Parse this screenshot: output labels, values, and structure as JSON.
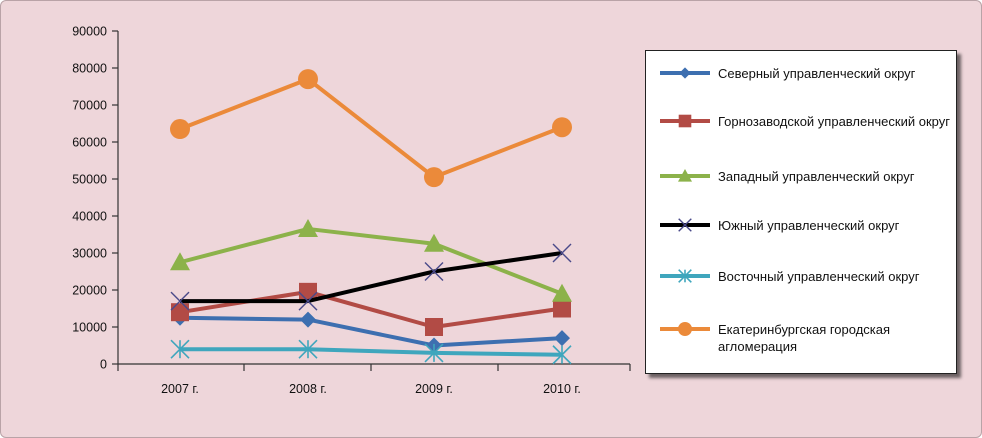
{
  "colors": {
    "background": "#eed6da",
    "severny": "#3d6fb0",
    "gornozavodskoy": "#b24b45",
    "zapadny": "#8cb24a",
    "yuzhny": "#000000",
    "vostochny": "#3fa6bd",
    "ekb": "#eb8a3a"
  },
  "chart_data": {
    "type": "line",
    "categories": [
      "2007 г.",
      "2008 г.",
      "2009 г.",
      "2010 г."
    ],
    "ylim": [
      0,
      90000
    ],
    "y_ticks": [
      0,
      10000,
      20000,
      30000,
      40000,
      50000,
      60000,
      70000,
      80000,
      90000
    ],
    "y_tick_labels": [
      "0",
      "10000",
      "20000",
      "30000",
      "40000",
      "50000",
      "60000",
      "70000",
      "80000",
      "90000"
    ],
    "grid": false,
    "legend_position": "right",
    "series": [
      {
        "name": "Северный управленческий округ",
        "values": [
          12500,
          12000,
          5000,
          7000
        ],
        "color": "#3d6fb0",
        "marker": "diamond"
      },
      {
        "name": "Горнозаводской управленческий округ",
        "values": [
          14000,
          19500,
          10000,
          15000
        ],
        "color": "#b24b45",
        "marker": "square"
      },
      {
        "name": "Западный управленческий округ",
        "values": [
          27500,
          36500,
          32500,
          19000
        ],
        "color": "#8cb24a",
        "marker": "triangle"
      },
      {
        "name": "Южный управленческий округ",
        "values": [
          17000,
          17000,
          25000,
          30000
        ],
        "color": "#000000",
        "marker": "x"
      },
      {
        "name": "Восточный управленческий округ",
        "values": [
          4000,
          4000,
          3000,
          2500
        ],
        "color": "#3fa6bd",
        "marker": "asterisk"
      },
      {
        "name": "Екатеринбургская городская агломерация",
        "values": [
          63500,
          77000,
          50500,
          64000
        ],
        "color": "#eb8a3a",
        "marker": "circle"
      }
    ]
  }
}
